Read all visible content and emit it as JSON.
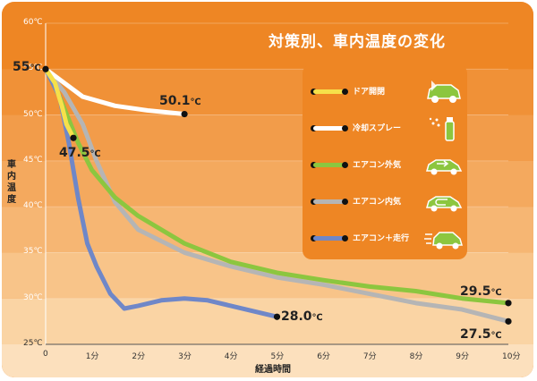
{
  "chart_data": {
    "type": "line",
    "title": "対策別、車内温度の変化",
    "ylabel": "車内温度",
    "xlabel": "経過時間",
    "ylim": [
      25,
      60
    ],
    "xlim": [
      0,
      10
    ],
    "y_ticks": [
      {
        "v": 25,
        "label": "25℃"
      },
      {
        "v": 30,
        "label": "30℃"
      },
      {
        "v": 35,
        "label": "35℃"
      },
      {
        "v": 40,
        "label": "40℃"
      },
      {
        "v": 45,
        "label": "45℃"
      },
      {
        "v": 50,
        "label": "50℃"
      },
      {
        "v": 55,
        "label": "55℃"
      },
      {
        "v": 60,
        "label": "60℃"
      }
    ],
    "x_ticks": [
      {
        "v": 0,
        "label": "0"
      },
      {
        "v": 1,
        "label": "1分"
      },
      {
        "v": 2,
        "label": "2分"
      },
      {
        "v": 3,
        "label": "3分"
      },
      {
        "v": 4,
        "label": "4分"
      },
      {
        "v": 5,
        "label": "5分"
      },
      {
        "v": 6,
        "label": "6分"
      },
      {
        "v": 7,
        "label": "7分"
      },
      {
        "v": 8,
        "label": "8分"
      },
      {
        "v": 9,
        "label": "9分"
      },
      {
        "v": 10,
        "label": "10分"
      }
    ],
    "grid": true,
    "legend_position": "top-right",
    "series": [
      {
        "name": "ドア開閉",
        "color": "#f6e04a",
        "icon": "car-door-open-icon",
        "x": [
          0,
          0.2,
          0.35,
          0.45,
          0.6
        ],
        "y": [
          55,
          53.5,
          51,
          49,
          47.5
        ]
      },
      {
        "name": "冷却スプレー",
        "color": "#ffffff",
        "icon": "spray-can-icon",
        "x": [
          0,
          0.4,
          0.8,
          1.5,
          2.2,
          3.0
        ],
        "y": [
          55,
          53.5,
          52,
          51,
          50.5,
          50.1
        ]
      },
      {
        "name": "エアコン外気",
        "color": "#8cc63f",
        "icon": "car-outside-air-icon",
        "x": [
          0,
          0.3,
          0.7,
          1.0,
          1.5,
          2.0,
          3.0,
          4.0,
          5.0,
          6.0,
          7.0,
          8.0,
          9.0,
          10.0
        ],
        "y": [
          55,
          52,
          47,
          44,
          41,
          39,
          36,
          34,
          32.8,
          32,
          31.3,
          30.8,
          30,
          29.5
        ]
      },
      {
        "name": "エアコン内気",
        "color": "#b5b5b5",
        "icon": "car-recirculate-icon",
        "x": [
          0,
          0.4,
          0.8,
          1.1,
          1.5,
          2.0,
          3.0,
          4.0,
          5.0,
          6.0,
          7.0,
          8.0,
          9.0,
          10.0
        ],
        "y": [
          55,
          52.5,
          49,
          45,
          40.5,
          37.5,
          35,
          33.5,
          32.3,
          31.5,
          30.5,
          29.5,
          28.8,
          27.5
        ]
      },
      {
        "name": "エアコン＋走行",
        "color": "#6f87c8",
        "icon": "car-driving-icon",
        "x": [
          0,
          0.3,
          0.5,
          0.7,
          0.9,
          1.1,
          1.4,
          1.7,
          2.0,
          2.5,
          3.0,
          3.5,
          4.0,
          4.5,
          5.0
        ],
        "y": [
          55,
          52,
          47,
          41,
          36,
          33.5,
          30.5,
          28.9,
          29.2,
          29.8,
          30,
          29.8,
          29.2,
          28.6,
          28
        ]
      }
    ],
    "annotations": [
      {
        "value": "55",
        "unit": "℃"
      },
      {
        "value": "50.1",
        "unit": "℃"
      },
      {
        "value": "47.5",
        "unit": "℃"
      },
      {
        "value": "29.5",
        "unit": "℃"
      },
      {
        "value": "28.0",
        "unit": "℃"
      },
      {
        "value": "27.5",
        "unit": "℃"
      }
    ]
  }
}
